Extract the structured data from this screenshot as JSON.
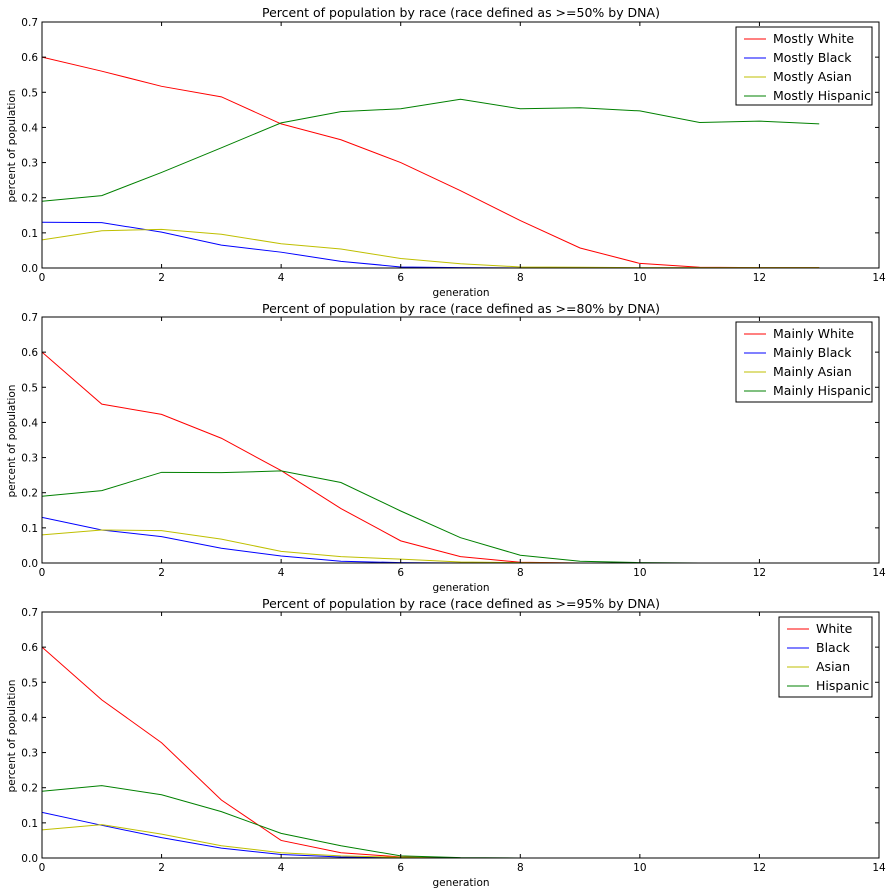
{
  "chart_data": [
    {
      "type": "line",
      "title": "Percent of population by race (race defined as >=50% by DNA)",
      "xlabel": "generation",
      "ylabel": "percent of population",
      "xlim": [
        0,
        14
      ],
      "ylim": [
        0,
        0.7
      ],
      "xticks": [
        "0",
        "2",
        "4",
        "6",
        "8",
        "10",
        "12",
        "14"
      ],
      "yticks": [
        "0.0",
        "0.1",
        "0.2",
        "0.3",
        "0.4",
        "0.5",
        "0.6",
        "0.7"
      ],
      "grid": false,
      "legend_position": "top-right",
      "x": [
        0,
        1,
        2,
        3,
        4,
        5,
        6,
        7,
        8,
        9,
        10,
        11,
        12,
        13
      ],
      "series": [
        {
          "name": "Mostly White",
          "color": "#ff0000",
          "values": [
            0.6,
            0.56,
            0.517,
            0.487,
            0.41,
            0.365,
            0.3,
            0.22,
            0.135,
            0.057,
            0.013,
            0.002,
            0.001,
            0.001
          ]
        },
        {
          "name": "Mostly Black",
          "color": "#0000ff",
          "values": [
            0.13,
            0.129,
            0.102,
            0.065,
            0.045,
            0.019,
            0.003,
            0.001,
            0.0,
            0.0,
            0.0,
            0.0,
            0.0,
            0.0
          ]
        },
        {
          "name": "Mostly Asian",
          "color": "#bfbf00",
          "values": [
            0.08,
            0.106,
            0.11,
            0.096,
            0.069,
            0.054,
            0.027,
            0.012,
            0.003,
            0.002,
            0.001,
            0.001,
            0.001,
            0.001
          ]
        },
        {
          "name": "Mostly Hispanic",
          "color": "#008000",
          "values": [
            0.19,
            0.206,
            0.272,
            0.342,
            0.413,
            0.445,
            0.453,
            0.48,
            0.453,
            0.456,
            0.447,
            0.414,
            0.418,
            0.41
          ]
        }
      ]
    },
    {
      "type": "line",
      "title": "Percent of population by race (race defined as >=80% by DNA)",
      "xlabel": "generation",
      "ylabel": "percent of population",
      "xlim": [
        0,
        14
      ],
      "ylim": [
        0,
        0.7
      ],
      "xticks": [
        "0",
        "2",
        "4",
        "6",
        "8",
        "10",
        "12",
        "14"
      ],
      "yticks": [
        "0.0",
        "0.1",
        "0.2",
        "0.3",
        "0.4",
        "0.5",
        "0.6",
        "0.7"
      ],
      "grid": false,
      "legend_position": "top-right",
      "x": [
        0,
        1,
        2,
        3,
        4,
        5,
        6,
        7,
        8,
        9,
        10,
        11,
        12,
        13
      ],
      "series": [
        {
          "name": "Mainly White",
          "color": "#ff0000",
          "values": [
            0.6,
            0.452,
            0.423,
            0.355,
            0.263,
            0.155,
            0.063,
            0.018,
            0.002,
            0.0,
            0.0,
            0.0,
            0.0,
            0.0
          ]
        },
        {
          "name": "Mainly Black",
          "color": "#0000ff",
          "values": [
            0.13,
            0.094,
            0.075,
            0.042,
            0.02,
            0.005,
            0.001,
            0.0,
            0.0,
            0.0,
            0.0,
            0.0,
            0.0,
            0.0
          ]
        },
        {
          "name": "Mainly Asian",
          "color": "#bfbf00",
          "values": [
            0.08,
            0.094,
            0.092,
            0.068,
            0.033,
            0.018,
            0.011,
            0.003,
            0.001,
            0.0,
            0.0,
            0.0,
            0.0,
            0.0
          ]
        },
        {
          "name": "Mainly Hispanic",
          "color": "#008000",
          "values": [
            0.19,
            0.206,
            0.258,
            0.257,
            0.262,
            0.229,
            0.148,
            0.072,
            0.022,
            0.005,
            0.001,
            0.0,
            0.0,
            0.0
          ]
        }
      ]
    },
    {
      "type": "line",
      "title": "Percent of population by race (race defined as >=95% by DNA)",
      "xlabel": "generation",
      "ylabel": "percent of population",
      "xlim": [
        0,
        14
      ],
      "ylim": [
        0,
        0.7
      ],
      "xticks": [
        "0",
        "2",
        "4",
        "6",
        "8",
        "10",
        "12",
        "14"
      ],
      "yticks": [
        "0.0",
        "0.1",
        "0.2",
        "0.3",
        "0.4",
        "0.5",
        "0.6",
        "0.7"
      ],
      "grid": false,
      "legend_position": "top-right",
      "x": [
        0,
        1,
        2,
        3,
        4,
        5,
        6,
        7,
        8,
        9,
        10,
        11,
        12,
        13
      ],
      "series": [
        {
          "name": "White",
          "color": "#ff0000",
          "values": [
            0.6,
            0.45,
            0.328,
            0.165,
            0.05,
            0.015,
            0.003,
            0.0,
            0.0,
            0.0,
            0.0,
            0.0,
            0.0,
            0.0
          ]
        },
        {
          "name": "Black",
          "color": "#0000ff",
          "values": [
            0.13,
            0.093,
            0.058,
            0.028,
            0.01,
            0.003,
            0.001,
            0.0,
            0.0,
            0.0,
            0.0,
            0.0,
            0.0,
            0.0
          ]
        },
        {
          "name": "Asian",
          "color": "#bfbf00",
          "values": [
            0.08,
            0.095,
            0.068,
            0.035,
            0.015,
            0.006,
            0.002,
            0.0,
            0.0,
            0.0,
            0.0,
            0.0,
            0.0,
            0.0
          ]
        },
        {
          "name": "Hispanic",
          "color": "#008000",
          "values": [
            0.19,
            0.206,
            0.18,
            0.132,
            0.07,
            0.035,
            0.006,
            0.001,
            0.0,
            0.0,
            0.0,
            0.0,
            0.0,
            0.0
          ]
        }
      ]
    }
  ]
}
